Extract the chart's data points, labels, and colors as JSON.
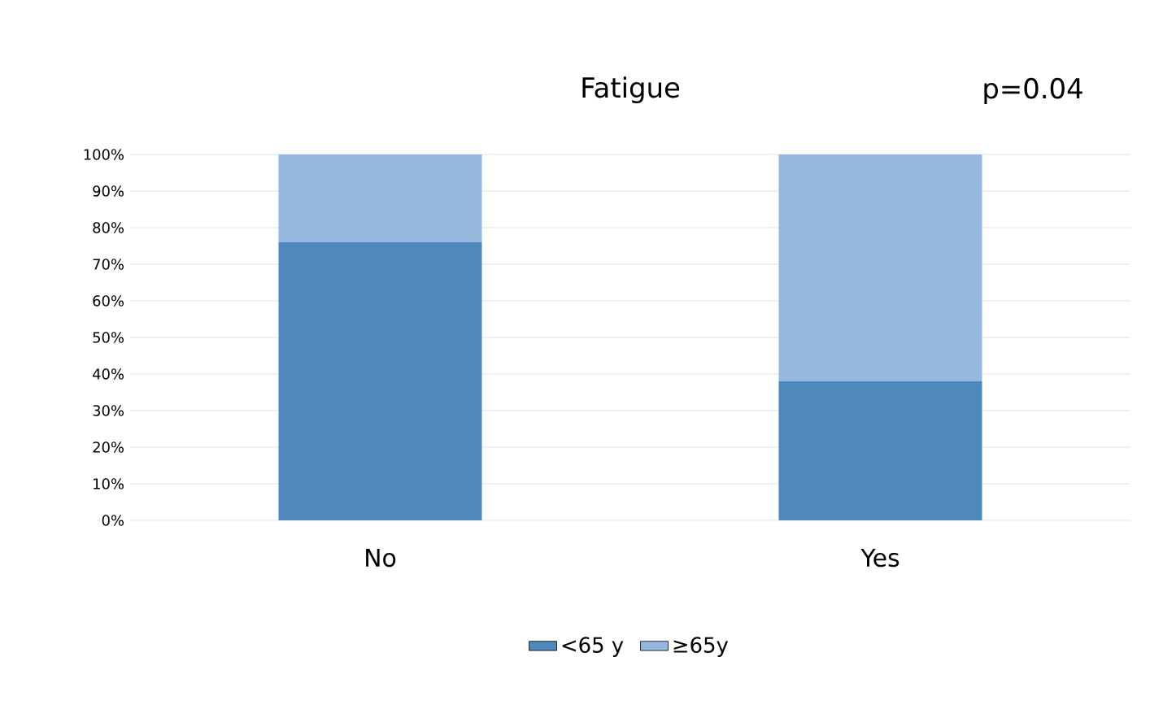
{
  "chart_data": {
    "type": "bar",
    "title": "Fatigue",
    "annotations": [
      "p=0.04"
    ],
    "stacked": true,
    "categories": [
      "No",
      "Yes"
    ],
    "series": [
      {
        "name": "<65 y",
        "color": "#4f88bb",
        "values": [
          76,
          38
        ]
      },
      {
        "name": "≥65y",
        "color": "#97b8de",
        "values": [
          24,
          62
        ]
      }
    ],
    "ylim": [
      0,
      100
    ],
    "yticks": [
      {
        "value": 0,
        "label": "0%"
      },
      {
        "value": 10,
        "label": "10%"
      },
      {
        "value": 20,
        "label": "20%"
      },
      {
        "value": 30,
        "label": "30%"
      },
      {
        "value": 40,
        "label": "40%"
      },
      {
        "value": 50,
        "label": "50%"
      },
      {
        "value": 60,
        "label": "60%"
      },
      {
        "value": 70,
        "label": "70%"
      },
      {
        "value": 80,
        "label": "80%"
      },
      {
        "value": 90,
        "label": "90%"
      },
      {
        "value": 100,
        "label": "100%"
      }
    ],
    "grid": "y",
    "legend": "bottom"
  }
}
